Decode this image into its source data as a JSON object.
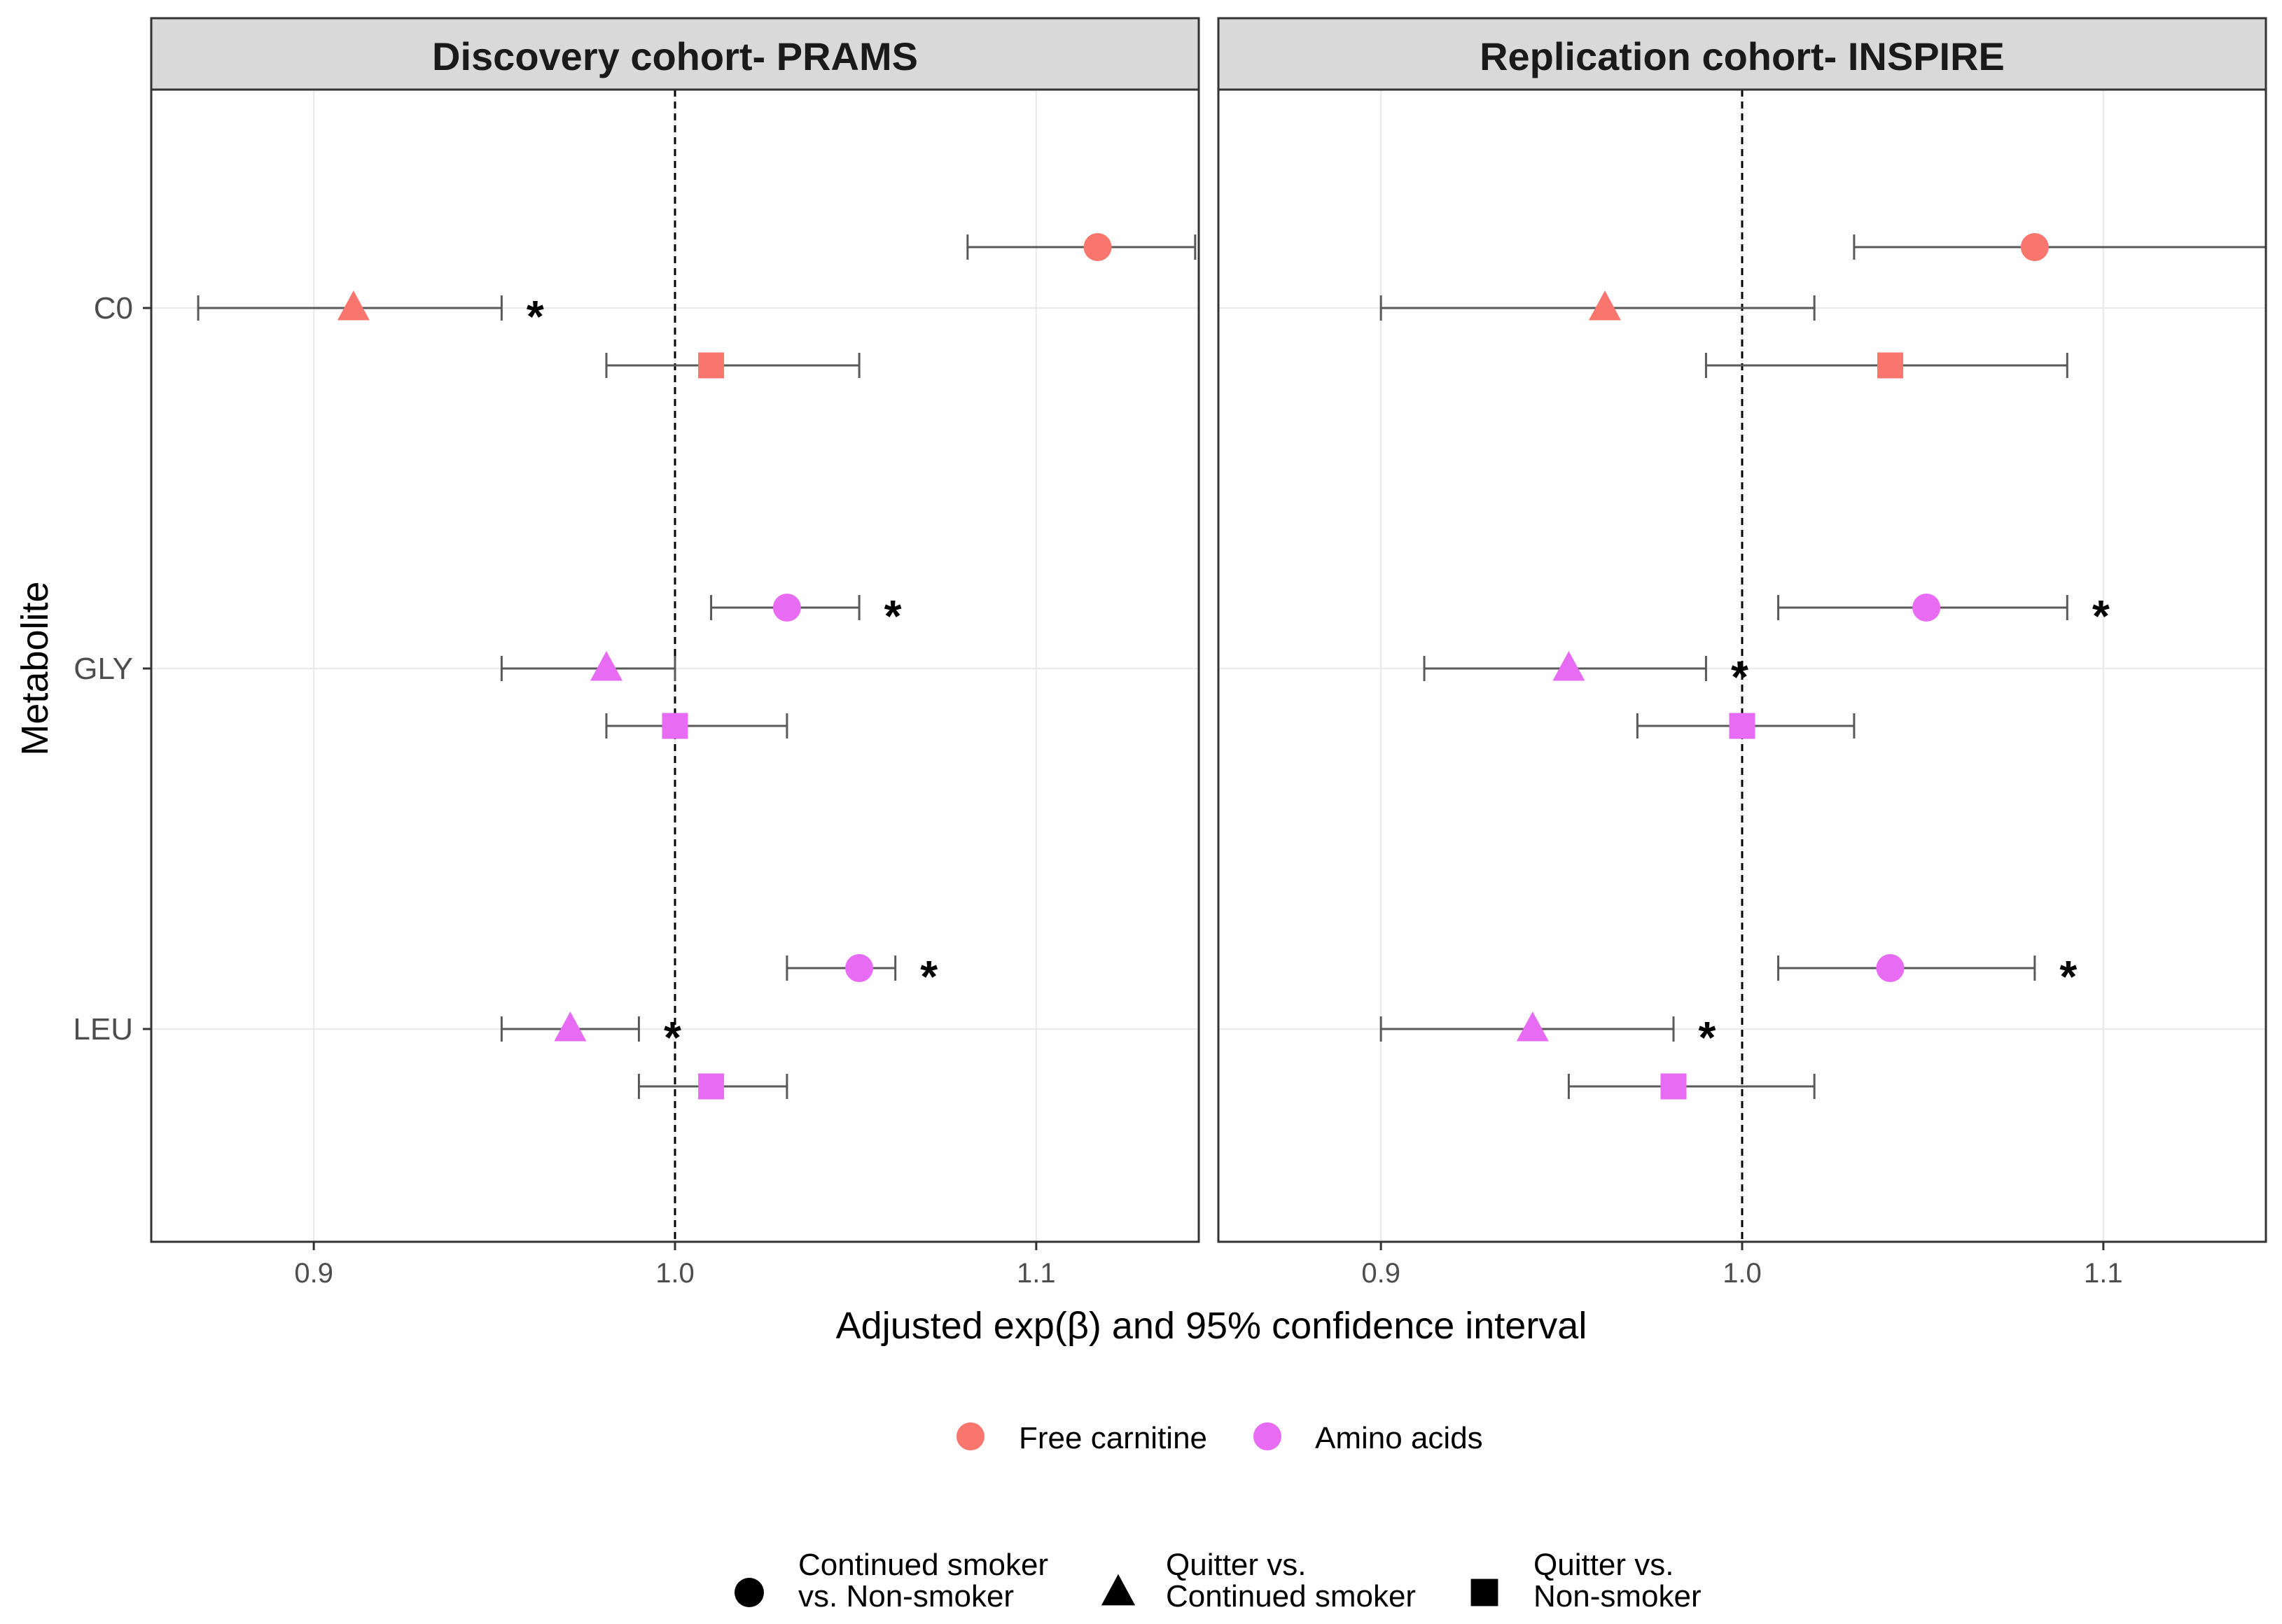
{
  "chart_data": {
    "type": "scatter",
    "subtype": "forest-plot",
    "xlabel": "Adjusted exp(β) and 95% confidence interval",
    "ylabel": "Metabolite",
    "xlim": [
      0.855,
      1.145
    ],
    "xticks": [
      {
        "value": 0.9,
        "label": "0.9"
      },
      {
        "value": 1.0,
        "label": "1.0"
      },
      {
        "value": 1.1,
        "label": "1.1"
      }
    ],
    "reference_line": 1.0,
    "grid": true,
    "categories": [
      "C0",
      "GLY",
      "LEU"
    ],
    "panels": [
      {
        "title": "Discovery cohort- PRAMS",
        "points": [
          {
            "metabolite": "C0",
            "comparison": "continued",
            "group": "free_carnitine",
            "estimate": 1.117,
            "lower": 1.081,
            "upper": 1.144,
            "significant": true
          },
          {
            "metabolite": "C0",
            "comparison": "quitter_vs_continued",
            "group": "free_carnitine",
            "estimate": 0.911,
            "lower": 0.868,
            "upper": 0.952,
            "significant": true
          },
          {
            "metabolite": "C0",
            "comparison": "quitter_vs_nonsmoker",
            "group": "free_carnitine",
            "estimate": 1.01,
            "lower": 0.981,
            "upper": 1.051,
            "significant": false
          },
          {
            "metabolite": "GLY",
            "comparison": "continued",
            "group": "amino_acids",
            "estimate": 1.031,
            "lower": 1.01,
            "upper": 1.051,
            "significant": true
          },
          {
            "metabolite": "GLY",
            "comparison": "quitter_vs_continued",
            "group": "amino_acids",
            "estimate": 0.981,
            "lower": 0.952,
            "upper": 1.0,
            "significant": false
          },
          {
            "metabolite": "GLY",
            "comparison": "quitter_vs_nonsmoker",
            "group": "amino_acids",
            "estimate": 1.0,
            "lower": 0.981,
            "upper": 1.031,
            "significant": false
          },
          {
            "metabolite": "LEU",
            "comparison": "continued",
            "group": "amino_acids",
            "estimate": 1.051,
            "lower": 1.031,
            "upper": 1.061,
            "significant": true
          },
          {
            "metabolite": "LEU",
            "comparison": "quitter_vs_continued",
            "group": "amino_acids",
            "estimate": 0.971,
            "lower": 0.952,
            "upper": 0.99,
            "significant": true
          },
          {
            "metabolite": "LEU",
            "comparison": "quitter_vs_nonsmoker",
            "group": "amino_acids",
            "estimate": 1.01,
            "lower": 0.99,
            "upper": 1.031,
            "significant": false
          }
        ]
      },
      {
        "title": "Replication cohort- INSPIRE",
        "points": [
          {
            "metabolite": "C0",
            "comparison": "continued",
            "group": "free_carnitine",
            "estimate": 1.081,
            "lower": 1.031,
            "upper": 1.145,
            "significant": true
          },
          {
            "metabolite": "C0",
            "comparison": "quitter_vs_continued",
            "group": "free_carnitine",
            "estimate": 0.962,
            "lower": 0.9,
            "upper": 1.02,
            "significant": false
          },
          {
            "metabolite": "C0",
            "comparison": "quitter_vs_nonsmoker",
            "group": "free_carnitine",
            "estimate": 1.041,
            "lower": 0.99,
            "upper": 1.09,
            "significant": false
          },
          {
            "metabolite": "GLY",
            "comparison": "continued",
            "group": "amino_acids",
            "estimate": 1.051,
            "lower": 1.01,
            "upper": 1.09,
            "significant": true
          },
          {
            "metabolite": "GLY",
            "comparison": "quitter_vs_continued",
            "group": "amino_acids",
            "estimate": 0.952,
            "lower": 0.912,
            "upper": 0.99,
            "significant": true
          },
          {
            "metabolite": "GLY",
            "comparison": "quitter_vs_nonsmoker",
            "group": "amino_acids",
            "estimate": 1.0,
            "lower": 0.971,
            "upper": 1.031,
            "significant": false
          },
          {
            "metabolite": "LEU",
            "comparison": "continued",
            "group": "amino_acids",
            "estimate": 1.041,
            "lower": 1.01,
            "upper": 1.081,
            "significant": true
          },
          {
            "metabolite": "LEU",
            "comparison": "quitter_vs_continued",
            "group": "amino_acids",
            "estimate": 0.942,
            "lower": 0.9,
            "upper": 0.981,
            "significant": true
          },
          {
            "metabolite": "LEU",
            "comparison": "quitter_vs_nonsmoker",
            "group": "amino_acids",
            "estimate": 0.981,
            "lower": 0.952,
            "upper": 1.02,
            "significant": false
          }
        ]
      }
    ],
    "significance_marker": "*",
    "color_legend": {
      "position": "bottom",
      "entries": [
        {
          "key": "free_carnitine",
          "label": "Free carnitine",
          "color": "#f8766d"
        },
        {
          "key": "amino_acids",
          "label": "Amino acids",
          "color": "#e76bf3"
        }
      ]
    },
    "shape_legend": {
      "position": "bottom",
      "entries": [
        {
          "key": "continued",
          "shape": "circle",
          "line1": "Continued smoker",
          "line2": "vs. Non-smoker"
        },
        {
          "key": "quitter_vs_continued",
          "shape": "triangle",
          "line1": "Quitter vs.",
          "line2": "Continued smoker"
        },
        {
          "key": "quitter_vs_nonsmoker",
          "shape": "square",
          "line1": "Quitter vs.",
          "line2": "Non-smoker"
        }
      ]
    },
    "colors": {
      "strip_fill": "#d9d9d9",
      "panel_border": "#333333",
      "grid": "#ebebeb",
      "errorbar": "#595959",
      "shape_legend_marker": "#000000"
    }
  }
}
